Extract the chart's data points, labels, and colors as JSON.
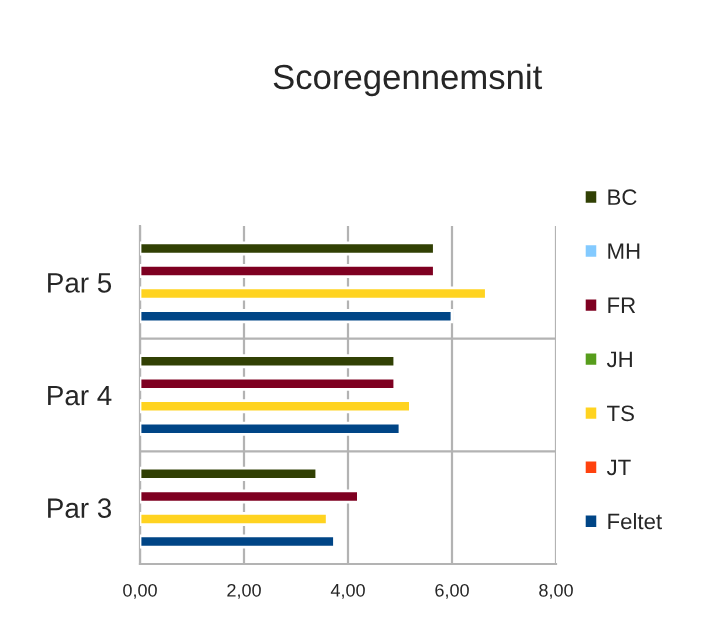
{
  "chart_data": {
    "type": "bar",
    "orientation": "horizontal",
    "title": "Scoregennemsnit",
    "categories": [
      "Par 5",
      "Par 4",
      "Par 3"
    ],
    "series": [
      {
        "name": "BC",
        "color": "#314004",
        "values": [
          5.66,
          4.9,
          3.4
        ]
      },
      {
        "name": "MH",
        "color": "#83caff",
        "values": [
          null,
          null,
          null
        ]
      },
      {
        "name": "FR",
        "color": "#7e0021",
        "values": [
          5.66,
          4.9,
          4.2
        ]
      },
      {
        "name": "JH",
        "color": "#579d1c",
        "values": [
          null,
          null,
          null
        ]
      },
      {
        "name": "TS",
        "color": "#ffd320",
        "values": [
          6.66,
          5.2,
          3.6
        ]
      },
      {
        "name": "JT",
        "color": "#ff420e",
        "values": [
          null,
          null,
          null
        ]
      },
      {
        "name": "Feltet",
        "color": "#004586",
        "values": [
          6.0,
          5.0,
          3.74
        ]
      }
    ],
    "xlim": [
      0,
      8
    ],
    "xticks": [
      {
        "value": 0,
        "label": "0,00"
      },
      {
        "value": 2,
        "label": "2,00"
      },
      {
        "value": 4,
        "label": "4,00"
      },
      {
        "value": 6,
        "label": "6,00"
      },
      {
        "value": 8,
        "label": "8,00"
      }
    ],
    "grid": true,
    "legend": "right"
  }
}
